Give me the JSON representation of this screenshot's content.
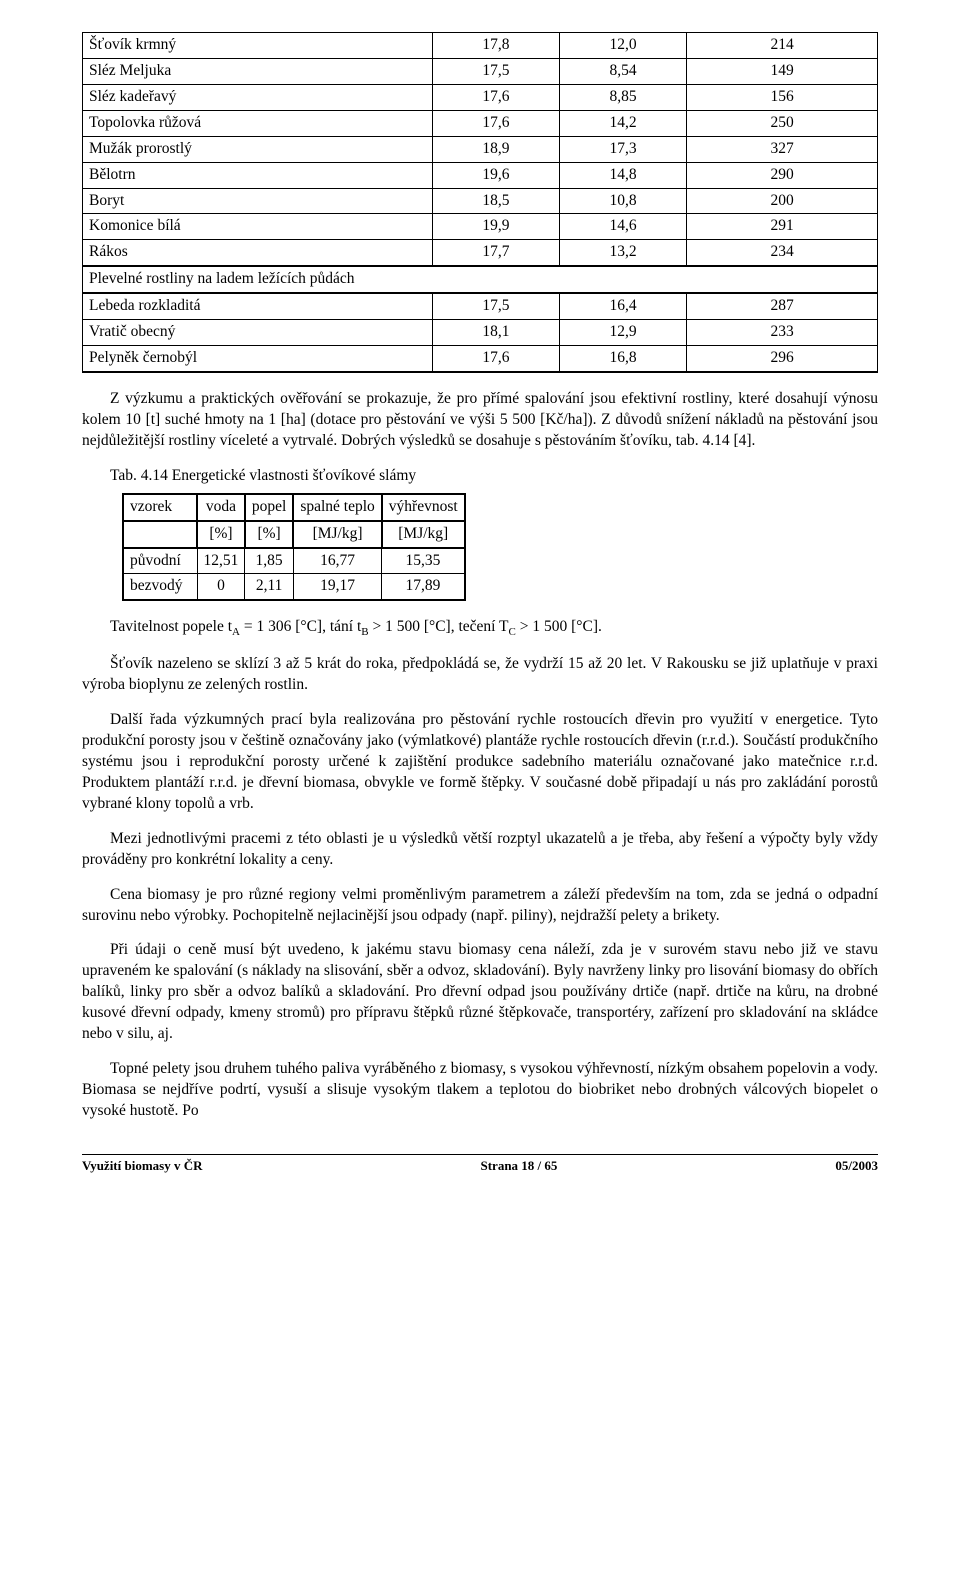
{
  "main_table": {
    "rows": [
      {
        "name": "Šťovík krmný",
        "v1": "17,8",
        "v2": "12,0",
        "v3": "214"
      },
      {
        "name": "Sléz Meljuka",
        "v1": "17,5",
        "v2": "8,54",
        "v3": "149"
      },
      {
        "name": "Sléz kadeřavý",
        "v1": "17,6",
        "v2": "8,85",
        "v3": "156"
      },
      {
        "name": "Topolovka růžová",
        "v1": "17,6",
        "v2": "14,2",
        "v3": "250"
      },
      {
        "name": "Mužák prorostlý",
        "v1": "18,9",
        "v2": "17,3",
        "v3": "327"
      },
      {
        "name": "Bělotrn",
        "v1": "19,6",
        "v2": "14,8",
        "v3": "290"
      },
      {
        "name": "Boryt",
        "v1": "18,5",
        "v2": "10,8",
        "v3": "200"
      },
      {
        "name": "Komonice bílá",
        "v1": "19,9",
        "v2": "14,6",
        "v3": "291"
      },
      {
        "name": "Rákos",
        "v1": "17,7",
        "v2": "13,2",
        "v3": "234"
      }
    ],
    "section_header": "Plevelné rostliny na ladem ležících půdách",
    "rows2": [
      {
        "name": "Lebeda rozkladitá",
        "v1": "17,5",
        "v2": "16,4",
        "v3": "287"
      },
      {
        "name": "Vratič obecný",
        "v1": "18,1",
        "v2": "12,9",
        "v3": "233"
      },
      {
        "name": "Pelyněk černobýl",
        "v1": "17,6",
        "v2": "16,8",
        "v3": "296"
      }
    ]
  },
  "para1": "Z výzkumu a praktických ověřování se prokazuje, že pro přímé spalování jsou efektivní rostliny, které dosahují výnosu kolem 10 [t] suché hmoty na 1 [ha] (dotace pro pěstování ve výši 5 500 [Kč/ha]). Z důvodů snížení nákladů na pěstování jsou nejdůležitější rostliny víceleté a vytrvalé. Dobrých výsledků se dosahuje s pěstováním šťovíku, tab. 4.14 [4].",
  "tab_caption": "Tab. 4.14 Energetické vlastnosti šťovíkové slámy",
  "small_table": {
    "headers": [
      {
        "l1": "vzorek",
        "l2": ""
      },
      {
        "l1": "voda",
        "l2": "[%]"
      },
      {
        "l1": "popel",
        "l2": "[%]"
      },
      {
        "l1": "spalné teplo",
        "l2": "[MJ/kg]"
      },
      {
        "l1": "výhřevnost",
        "l2": "[MJ/kg]"
      }
    ],
    "rows": [
      {
        "c0": "původní",
        "c1": "12,51",
        "c2": "1,85",
        "c3": "16,77",
        "c4": "15,35"
      },
      {
        "c0": "bezvodý",
        "c1": "0",
        "c2": "2,11",
        "c3": "19,17",
        "c4": "17,89"
      }
    ]
  },
  "formula": "Tavitelnost popele t",
  "formula_A": "A",
  "formula_mid1": " = 1 306 [°C], tání t",
  "formula_B": "B",
  "formula_mid2": " > 1 500 [°C], tečení T",
  "formula_C": "C",
  "formula_end": " > 1 500 [°C].",
  "para2": "Šťovík nazeleno se sklízí 3 až 5 krát do roka, předpokládá se, že vydrží 15 až 20 let. V Rakousku se již uplatňuje v praxi výroba bioplynu ze zelených rostlin.",
  "para3": "Další řada výzkumných prací byla realizována pro pěstování rychle rostoucích dřevin pro využití v energetice. Tyto produkční porosty jsou v češtině označovány jako (výmlatkové) plantáže rychle rostoucích dřevin (r.r.d.). Součástí produkčního systému jsou i reprodukční porosty určené k zajištění produkce sadebního materiálu označované jako matečnice r.r.d. Produktem plantáží r.r.d. je dřevní biomasa, obvykle ve formě štěpky. V současné době připadají u nás pro zakládání porostů vybrané klony topolů a vrb.",
  "para4": "Mezi jednotlivými pracemi z této oblasti je u výsledků větší rozptyl ukazatelů a je třeba, aby řešení a výpočty byly vždy prováděny pro konkrétní lokality a ceny.",
  "para5": "Cena biomasy je pro různé regiony velmi proměnlivým parametrem a záleží především na tom, zda se jedná o odpadní surovinu nebo výrobky. Pochopitelně nejlacinější jsou odpady (např. piliny), nejdražší pelety a brikety.",
  "para6": "Při údaji o ceně musí být uvedeno, k jakému stavu biomasy cena náleží, zda je v surovém stavu nebo již ve stavu upraveném ke spalování (s náklady na slisování, sběr a odvoz, skladování). Byly navrženy linky pro lisování biomasy do obřích balíků, linky pro sběr a odvoz balíků a skladování. Pro dřevní odpad jsou používány drtiče (např. drtiče na kůru, na drobné kusové dřevní odpady, kmeny stromů) pro přípravu štěpků různé štěpkovače, transportéry, zařízení pro skladování na skládce nebo v silu, aj.",
  "para7": "Topné pelety jsou druhem tuhého paliva vyráběného z biomasy, s vysokou výhřevností, nízkým obsahem popelovin a vody. Biomasa se nejdříve podrtí, vysuší a slisuje vysokým tlakem a teplotou do biobriket nebo drobných válcových biopelet o vysoké hustotě. Po",
  "footer": {
    "left": "Využití biomasy v ČR",
    "center": "Strana 18 / 65",
    "right": "05/2003"
  }
}
